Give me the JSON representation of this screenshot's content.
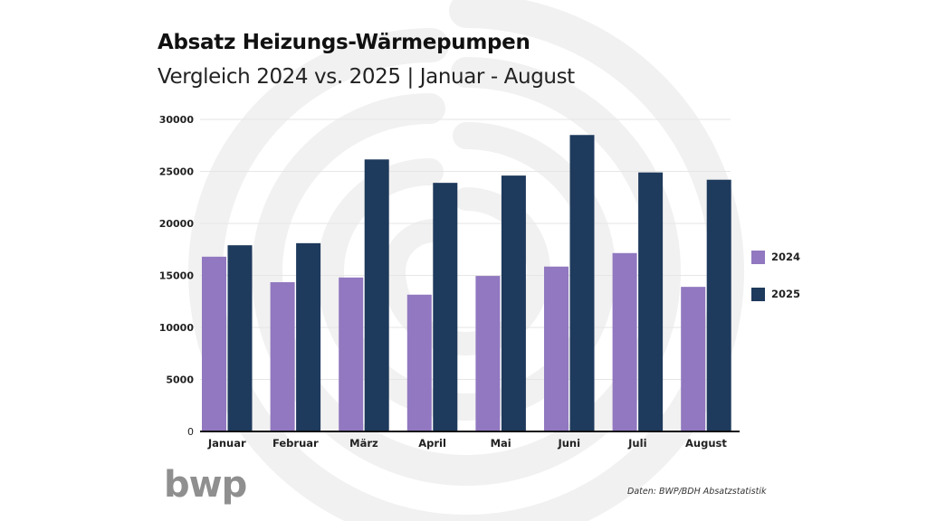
{
  "title": "Absatz Heizungs-Wärmepumpen",
  "subtitle": "Vergleich 2024 vs. 2025 | Januar - August",
  "logo_text": "bwp",
  "source": "Daten: BWP/BDH Absatzstatistik",
  "colors": {
    "series_2024": "#9178c0",
    "series_2025": "#1e3a5c",
    "grid": "#e6e6e6",
    "watermark": "#f0f0f0",
    "logo": "#8f8f8f"
  },
  "chart_data": {
    "type": "bar",
    "title": "Absatz Heizungs-Wärmepumpen",
    "subtitle": "Vergleich 2024 vs. 2025 | Januar - August",
    "xlabel": "",
    "ylabel": "",
    "categories": [
      "Januar",
      "Februar",
      "März",
      "April",
      "Mai",
      "Juni",
      "Juli",
      "August"
    ],
    "series": [
      {
        "name": "2024",
        "values": [
          16800,
          14350,
          14800,
          13150,
          14950,
          15850,
          17150,
          13900
        ]
      },
      {
        "name": "2025",
        "values": [
          17900,
          18100,
          26150,
          23900,
          24600,
          28500,
          24900,
          24200
        ]
      }
    ],
    "ylim": [
      0,
      30000
    ],
    "yticks": [
      0,
      5000,
      10000,
      15000,
      20000,
      25000,
      30000
    ],
    "ytick_labels": [
      "0",
      "5000",
      "10000",
      "15000",
      "20000",
      "25000",
      "30000"
    ],
    "grid": true,
    "legend": {
      "position": "right",
      "entries": [
        "2024",
        "2025"
      ]
    }
  }
}
